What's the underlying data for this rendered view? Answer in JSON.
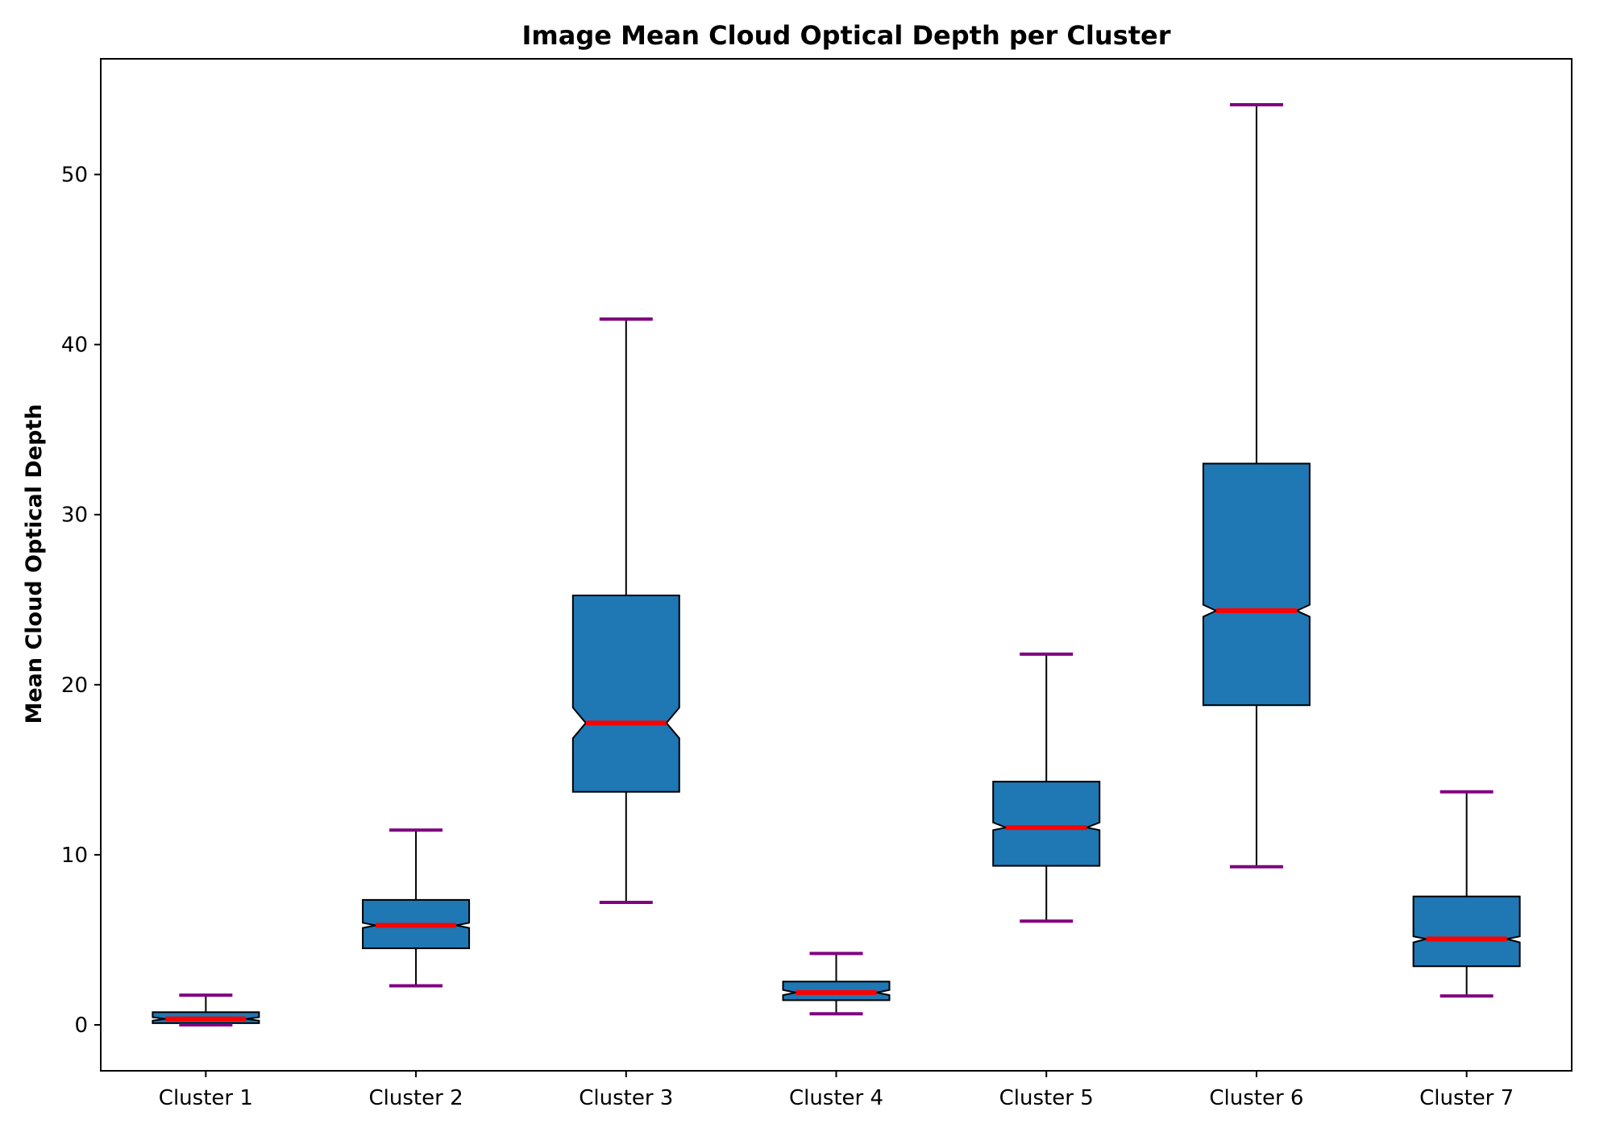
{
  "chart_data": {
    "type": "boxplot",
    "title": "Image Mean Cloud Optical Depth per Cluster",
    "xlabel": "",
    "ylabel": "Mean Cloud Optical Depth",
    "ylim": [
      -2.7,
      56.8
    ],
    "yticks": [
      0,
      10,
      20,
      30,
      40,
      50
    ],
    "notched": true,
    "colors": {
      "box_fill": "#1f77b4",
      "box_edge": "#000000",
      "median": "#ff0000",
      "caps": "#800080",
      "whiskers": "#000000"
    },
    "categories": [
      "Cluster 1",
      "Cluster 2",
      "Cluster 3",
      "Cluster 4",
      "Cluster 5",
      "Cluster 6",
      "Cluster 7"
    ],
    "boxes": [
      {
        "label": "Cluster 1",
        "whislo": 0.0,
        "q1": 0.1,
        "med": 0.35,
        "q3": 0.75,
        "whishi": 1.75,
        "notch_lo": 0.25,
        "notch_hi": 0.45
      },
      {
        "label": "Cluster 2",
        "whislo": 2.3,
        "q1": 4.5,
        "med": 5.85,
        "q3": 7.35,
        "whishi": 11.45,
        "notch_lo": 5.7,
        "notch_hi": 6.0
      },
      {
        "label": "Cluster 3",
        "whislo": 7.2,
        "q1": 13.7,
        "med": 17.75,
        "q3": 25.25,
        "whishi": 41.5,
        "notch_lo": 16.85,
        "notch_hi": 18.65
      },
      {
        "label": "Cluster 4",
        "whislo": 0.65,
        "q1": 1.45,
        "med": 1.9,
        "q3": 2.55,
        "whishi": 4.2,
        "notch_lo": 1.75,
        "notch_hi": 2.05
      },
      {
        "label": "Cluster 5",
        "whislo": 6.1,
        "q1": 9.35,
        "med": 11.6,
        "q3": 14.3,
        "whishi": 21.8,
        "notch_lo": 11.45,
        "notch_hi": 11.9
      },
      {
        "label": "Cluster 6",
        "whislo": 9.3,
        "q1": 18.8,
        "med": 24.35,
        "q3": 33.0,
        "whishi": 54.1,
        "notch_lo": 24.0,
        "notch_hi": 24.7
      },
      {
        "label": "Cluster 7",
        "whislo": 1.7,
        "q1": 3.45,
        "med": 5.05,
        "q3": 7.55,
        "whishi": 13.7,
        "notch_lo": 4.85,
        "notch_hi": 5.2
      }
    ]
  }
}
